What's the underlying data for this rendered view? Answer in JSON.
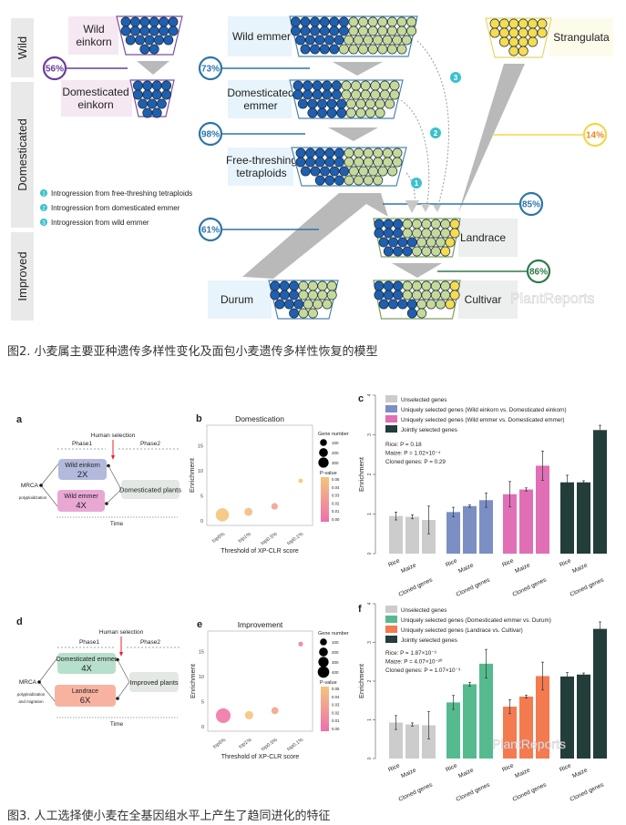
{
  "figure2": {
    "stages": {
      "wild": "Wild",
      "domesticated": "Domesticated",
      "improved": "Improved"
    },
    "labels": {
      "wild_einkorn": [
        "Wild",
        "einkorn"
      ],
      "dom_einkorn": [
        "Domesticated",
        "einkorn"
      ],
      "wild_emmer": [
        "Wild emmer"
      ],
      "dom_emmer": [
        "Domesticated",
        "emmer"
      ],
      "free_threshing": [
        "Free-threshing",
        "tetraploids"
      ],
      "durum": [
        "Durum"
      ],
      "strangulata": [
        "Strangulata"
      ],
      "landrace": [
        "Landrace"
      ],
      "cultivar": [
        "Cultivar"
      ]
    },
    "percentages": {
      "einkorn": "56%",
      "wild_emmer": "73%",
      "dom_emmer": "98%",
      "durum": "61%",
      "strangulata": "14%",
      "landrace": "85%",
      "cultivar": "86%"
    },
    "colors": {
      "blue_genome": "#1f5fb0",
      "green_genome": "#c5d99a",
      "yellow_genome": "#f5dc50",
      "einkorn": "#6a3d9a",
      "emmer": "#2e75a8",
      "strangulata": "#f0d84a",
      "cultivar": "#2e7a4a",
      "introgression": "#3cc0cc"
    },
    "composition": {
      "wild_einkorn": [
        "BBBBBB",
        "BBBBBB",
        "BBBBB",
        "BB"
      ],
      "dom_einkorn": [
        "BBBB",
        "BBBB",
        "BBB",
        "BB"
      ],
      "wild_emmer": [
        "BBBBBBGGGGGGG",
        "BBBBBBGGGGGGG",
        "BBBBBGGGGGGG",
        "BBBBGGGGGGG"
      ],
      "dom_emmer": [
        "BBBBBGGGGGG",
        "BBBBBGGGGGG",
        "BBBBBGGGGG",
        "BBBBGGGG"
      ],
      "free_threshing": [
        "BBBBBGGGGGG",
        "BBBBBGGGGGG",
        "BBBBBGGGGG",
        "BBBGGGG"
      ],
      "durum": [
        "BBBGGGG",
        "BBBGGGG",
        "BBBGGG",
        "BGG"
      ],
      "strangulata": [
        "YYYYYY",
        "YYYYYY",
        "YYYY",
        "YY"
      ],
      "landrace": [
        "BBBGGGGGY",
        "BBBGGGGGY",
        "BBBBGGGY",
        "BBBGGGY"
      ],
      "cultivar": [
        "BBBGGGGGY",
        "BBBGGGGGY",
        "BBBBGGGY",
        "BG"
      ]
    },
    "introgression_legend": [
      {
        "num": "1",
        "text": "Introgression from free-threshing tetraploids"
      },
      {
        "num": "2",
        "text": "Introgression from domesticated emmer"
      },
      {
        "num": "3",
        "text": "Introgression from wild emmer"
      }
    ],
    "watermark": "PlantReports"
  },
  "caption2": "图2. 小麦属主要亚种遗传多样性变化及面包小麦遗传多样性恢复的模型",
  "figure3": {
    "panel_a": {
      "letter": "a",
      "human_selection": "Human selection",
      "phase1": "Phase1",
      "phase2": "Phase2",
      "box1": {
        "name": "Wild einkorn",
        "ploidy": "2X",
        "color": "#b3b9dc"
      },
      "box2": {
        "name": "Wild emmer",
        "ploidy": "4X",
        "color": "#e9a8d4"
      },
      "target": "Domesticated plants",
      "mrca": "MRCA",
      "process": [
        "polyploidization"
      ],
      "time": "Time"
    },
    "panel_d": {
      "letter": "d",
      "human_selection": "Human selection",
      "phase1": "Phase1",
      "phase2": "Phase2",
      "box1": {
        "name": "Domesticated emmer",
        "ploidy": "4X",
        "color": "#b7e0cc"
      },
      "box2": {
        "name": "Landrace",
        "ploidy": "6X",
        "color": "#f8b3a0"
      },
      "target": "Improved plants",
      "mrca": "MRCA",
      "process": [
        "polyploidization",
        "and migration"
      ],
      "time": "Time"
    }
  },
  "chart_data": [
    {
      "panel": "b",
      "type": "scatter",
      "title": "Domestication",
      "xlabel": "Threshold of XP-CLR score",
      "ylabel": "Enrichment",
      "categories": [
        "top5%",
        "top1%",
        "top0.5%",
        "top0.1%"
      ],
      "yticks": [
        "0",
        "5",
        "10",
        "15"
      ],
      "ylim": [
        0,
        18
      ],
      "points": [
        {
          "x": "top5%",
          "y": 1.2,
          "gene_number": 330,
          "p_value": 0.05
        },
        {
          "x": "top1%",
          "y": 1.8,
          "gene_number": 90,
          "p_value": 0.045
        },
        {
          "x": "top0.5%",
          "y": 2.9,
          "gene_number": 50,
          "p_value": 0.03
        },
        {
          "x": "top0.1%",
          "y": 8.0,
          "gene_number": 12,
          "p_value": 0.05
        }
      ],
      "size_legend": {
        "title": "Gene number",
        "values": [
          "100",
          "200",
          "300"
        ]
      },
      "color_legend": {
        "title": "P-value",
        "values": [
          "0.05",
          "0.04",
          "0.03",
          "0.02",
          "0.01",
          "0.00"
        ],
        "low_color": "#ee6fae",
        "high_color": "#f5c57a"
      }
    },
    {
      "panel": "c",
      "type": "bar",
      "ylabel": "Enrichment",
      "ylim": [
        0,
        4
      ],
      "yticks": [
        "0",
        "1",
        "2",
        "3",
        "4"
      ],
      "categories": [
        "Rice",
        "Maize",
        "Cloned genes"
      ],
      "series": [
        {
          "name": "Unselected genes",
          "color": "#cccccc",
          "values": [
            0.95,
            0.93,
            0.85
          ],
          "errors": [
            0.1,
            0.05,
            0.35
          ]
        },
        {
          "name": "Uniquely selected genes (Wild einkorn vs. Domesticated einkorn)",
          "color": "#7b8fc4",
          "values": [
            1.05,
            1.2,
            1.35
          ],
          "errors": [
            0.12,
            0.03,
            0.18
          ]
        },
        {
          "name": "Uniquely selected genes (Wild emmer vs. Domesticated emmer)",
          "color": "#e06fb5",
          "values": [
            1.5,
            1.62,
            2.22
          ],
          "errors": [
            0.32,
            0.04,
            0.37
          ]
        },
        {
          "name": "Jointly selected genes",
          "color": "#233d3b",
          "values": [
            1.8,
            1.8,
            3.12
          ],
          "errors": [
            0.18,
            0.04,
            0.12
          ]
        }
      ],
      "annotations": [
        "Rice: P = 0.18",
        "Maize: P = 1.02×10⁻⁴",
        "Cloned genes: P = 0.29"
      ]
    },
    {
      "panel": "e",
      "type": "scatter",
      "title": "Improvement",
      "xlabel": "Threshold of XP-CLR score",
      "ylabel": "Enrichment",
      "categories": [
        "top5%",
        "top1%",
        "top0.5%",
        "top0.1%"
      ],
      "yticks": [
        "0",
        "5",
        "10",
        "15"
      ],
      "ylim": [
        0,
        18
      ],
      "points": [
        {
          "x": "top5%",
          "y": 2.2,
          "gene_number": 420,
          "p_value": 0.005
        },
        {
          "x": "top1%",
          "y": 2.3,
          "gene_number": 100,
          "p_value": 0.05
        },
        {
          "x": "top0.5%",
          "y": 3.2,
          "gene_number": 60,
          "p_value": 0.03
        },
        {
          "x": "top0.1%",
          "y": 16.5,
          "gene_number": 15,
          "p_value": 0.01
        }
      ],
      "size_legend": {
        "title": "Gene number",
        "values": [
          "100",
          "200",
          "300",
          "400"
        ]
      },
      "color_legend": {
        "title": "P-value",
        "values": [
          "0.05",
          "0.04",
          "0.03",
          "0.02",
          "0.01",
          "0.00"
        ],
        "low_color": "#ee6fae",
        "high_color": "#f5c57a"
      }
    },
    {
      "panel": "f",
      "type": "bar",
      "ylabel": "Enrichment",
      "ylim": [
        0,
        4
      ],
      "yticks": [
        "0",
        "1",
        "2",
        "3",
        "4"
      ],
      "categories": [
        "Rice",
        "Maize",
        "Cloned genes"
      ],
      "series": [
        {
          "name": "Unselected genes",
          "color": "#cccccc",
          "values": [
            0.93,
            0.88,
            0.86
          ],
          "errors": [
            0.18,
            0.04,
            0.35
          ]
        },
        {
          "name": "Uniquely selected genes (Domesticated emmer vs. Durum)",
          "color": "#55bb8f",
          "values": [
            1.45,
            1.92,
            2.45
          ],
          "errors": [
            0.18,
            0.05,
            0.37
          ]
        },
        {
          "name": "Uniquely selected genes (Landrace vs. Cultivar)",
          "color": "#f47a50",
          "values": [
            1.34,
            1.6,
            2.13
          ],
          "errors": [
            0.18,
            0.04,
            0.36
          ]
        },
        {
          "name": "Jointly selected genes",
          "color": "#233d3b",
          "values": [
            2.12,
            2.17,
            3.35
          ],
          "errors": [
            0.1,
            0.04,
            0.18
          ]
        }
      ],
      "annotations": [
        "Rice: P = 1.87×10⁻³",
        "Maize: P = 4.07×10⁻²⁰",
        "Cloned genes: P = 1.07×10⁻³"
      ]
    }
  ],
  "caption3": "图3. 人工选择使小麦在全基因组水平上产生了趋同进化的特征"
}
